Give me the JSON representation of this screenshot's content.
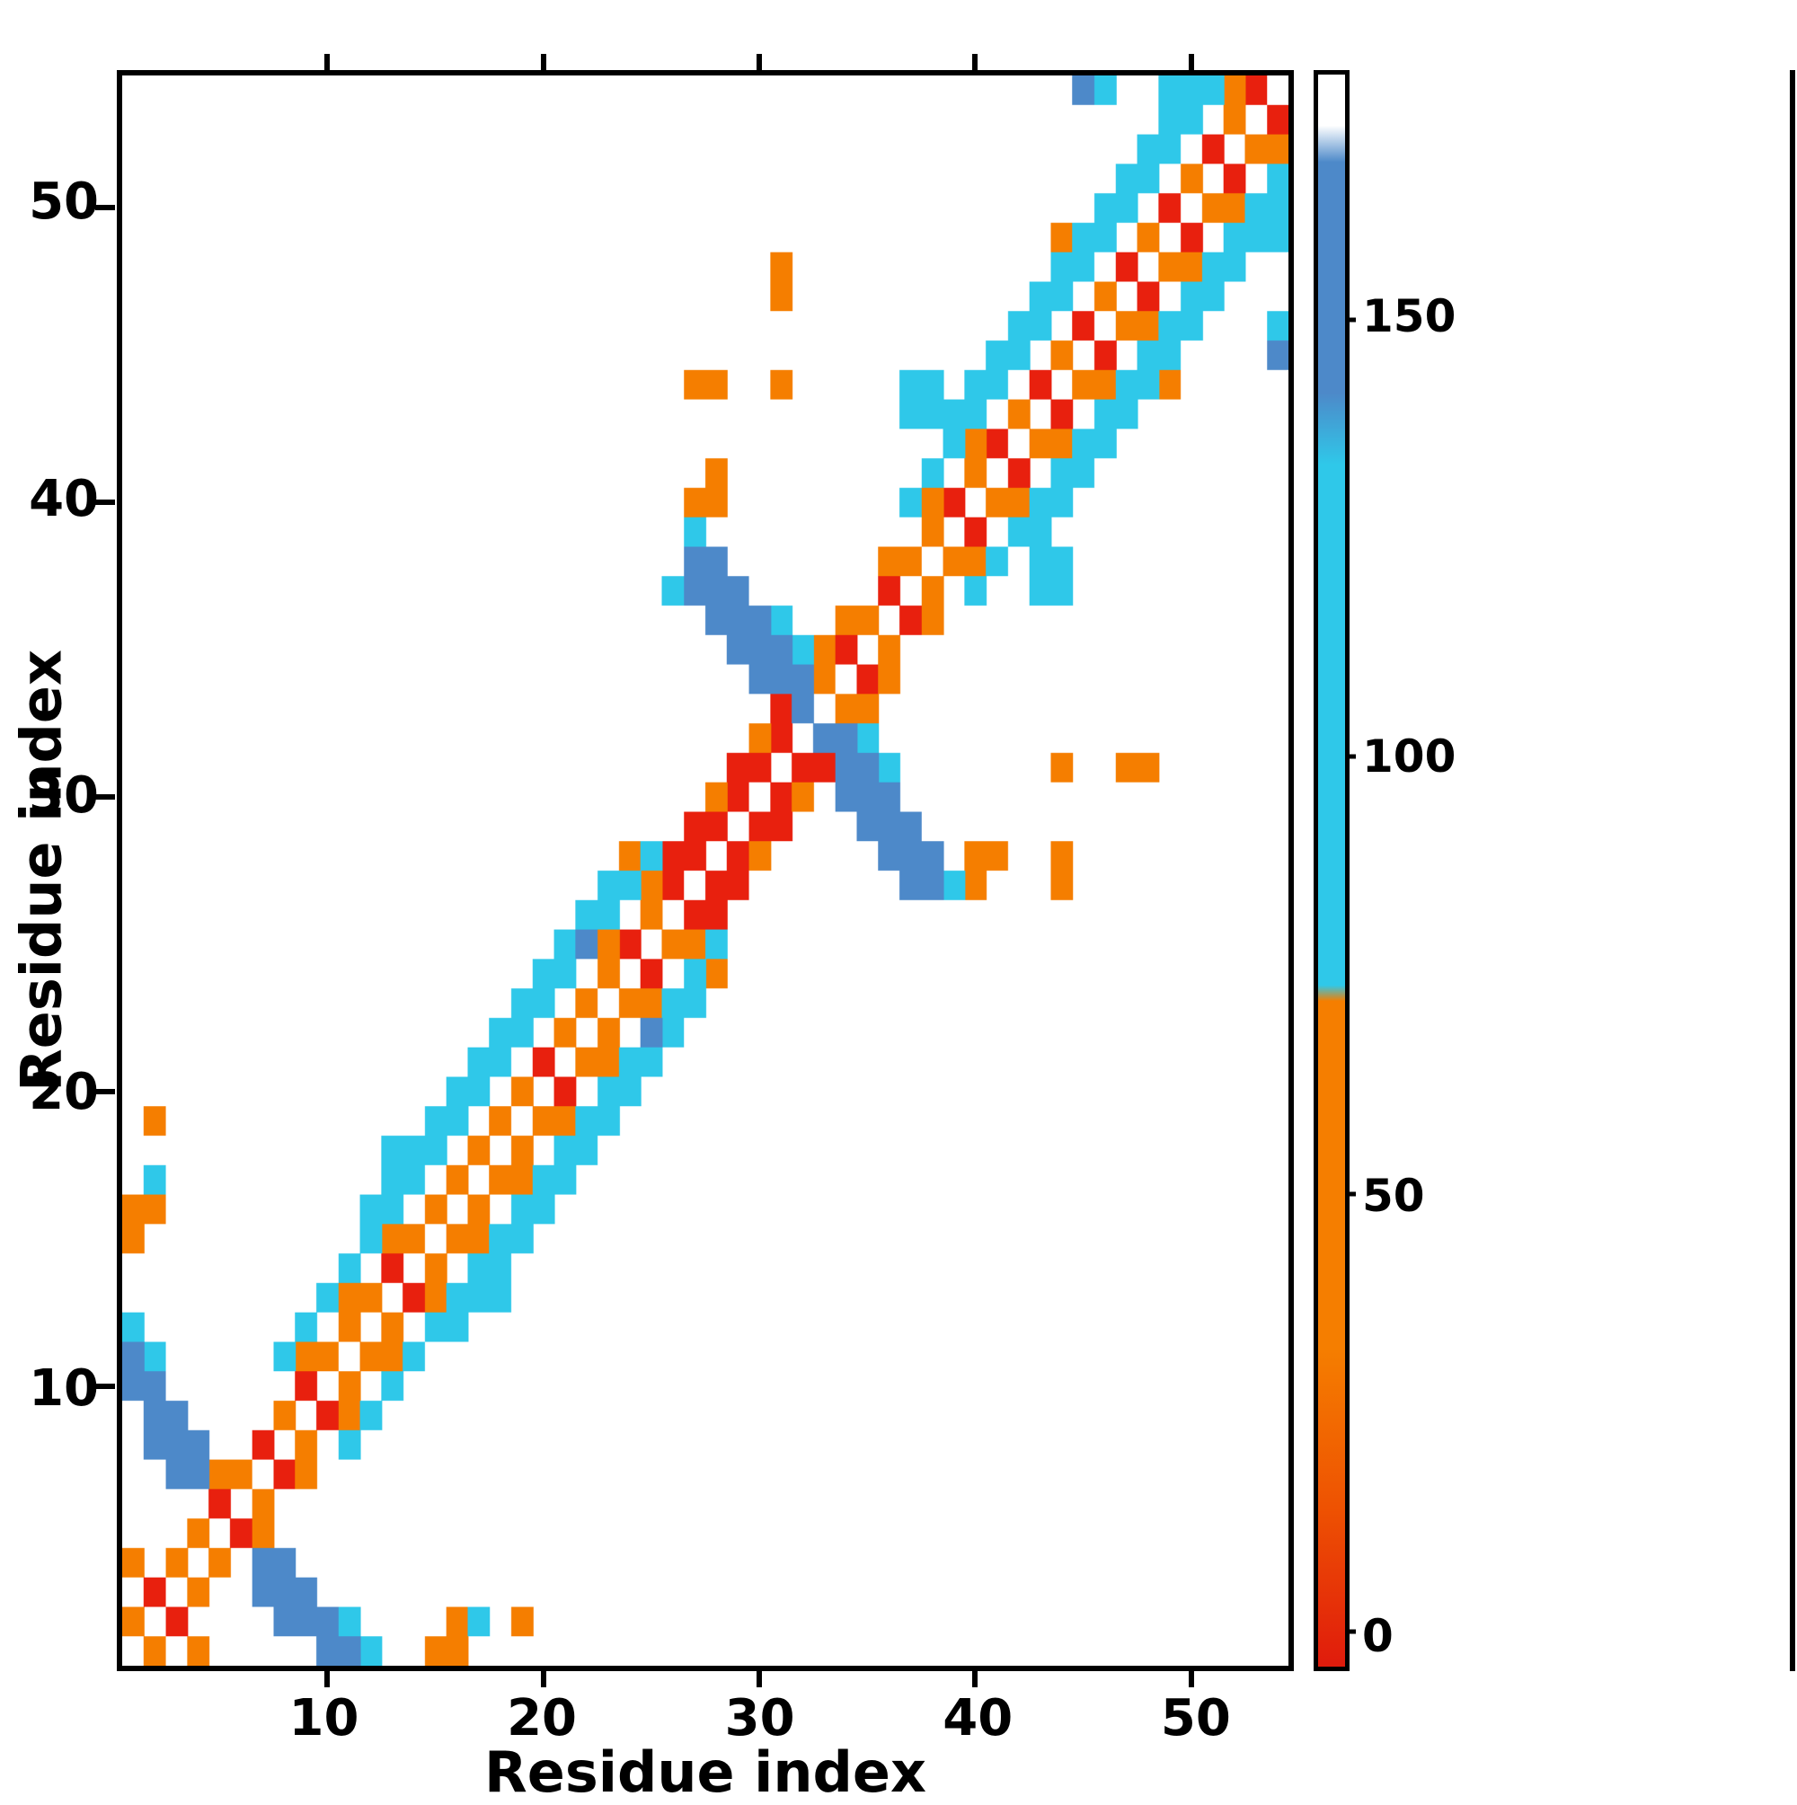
{
  "chart_data": {
    "type": "heatmap",
    "title": "",
    "xlabel": "Residue index",
    "ylabel": "Residue index",
    "n_residues": 54,
    "axis_range": [
      0.5,
      54.5
    ],
    "x_ticks": [
      10,
      20,
      30,
      40,
      50
    ],
    "y_ticks": [
      10,
      20,
      30,
      40,
      50
    ],
    "grid": false,
    "background_value": null,
    "palette": {
      "red": "#e8200e",
      "orange": "#f57e00",
      "cyan": "#2fc8e9",
      "blue": "#4d89c9"
    },
    "approx_value_by_color": {
      "red": 5,
      "orange": 45,
      "cyan": 110,
      "blue": 155
    },
    "cells_by_color": {
      "red": [
        [
          3,
          2
        ],
        [
          2,
          3
        ],
        [
          6,
          5
        ],
        [
          5,
          6
        ],
        [
          8,
          7
        ],
        [
          7,
          8
        ],
        [
          10,
          9
        ],
        [
          9,
          10
        ],
        [
          14,
          13
        ],
        [
          13,
          14
        ],
        [
          21,
          20
        ],
        [
          20,
          21
        ],
        [
          25,
          24
        ],
        [
          24,
          25
        ],
        [
          27,
          26
        ],
        [
          28,
          26
        ],
        [
          26,
          27
        ],
        [
          28,
          27
        ],
        [
          29,
          27
        ],
        [
          26,
          28
        ],
        [
          27,
          28
        ],
        [
          29,
          28
        ],
        [
          27,
          29
        ],
        [
          28,
          29
        ],
        [
          30,
          29
        ],
        [
          31,
          29
        ],
        [
          29,
          30
        ],
        [
          31,
          30
        ],
        [
          29,
          31
        ],
        [
          30,
          31
        ],
        [
          32,
          31
        ],
        [
          33,
          31
        ],
        [
          31,
          32
        ],
        [
          31,
          33
        ],
        [
          35,
          34
        ],
        [
          34,
          35
        ],
        [
          37,
          36
        ],
        [
          36,
          37
        ],
        [
          40,
          39
        ],
        [
          39,
          40
        ],
        [
          42,
          41
        ],
        [
          41,
          42
        ],
        [
          44,
          43
        ],
        [
          43,
          44
        ],
        [
          46,
          45
        ],
        [
          45,
          46
        ],
        [
          48,
          47
        ],
        [
          47,
          48
        ],
        [
          50,
          49
        ],
        [
          49,
          50
        ],
        [
          52,
          51
        ],
        [
          51,
          52
        ],
        [
          54,
          53
        ],
        [
          53,
          54
        ]
      ],
      "orange": [
        [
          2,
          1
        ],
        [
          4,
          1
        ],
        [
          15,
          1
        ],
        [
          16,
          1
        ],
        [
          1,
          2
        ],
        [
          16,
          2
        ],
        [
          19,
          2
        ],
        [
          4,
          3
        ],
        [
          1,
          4
        ],
        [
          3,
          4
        ],
        [
          5,
          4
        ],
        [
          4,
          5
        ],
        [
          7,
          5
        ],
        [
          7,
          6
        ],
        [
          5,
          7
        ],
        [
          6,
          7
        ],
        [
          9,
          7
        ],
        [
          9,
          8
        ],
        [
          8,
          9
        ],
        [
          11,
          9
        ],
        [
          11,
          10
        ],
        [
          9,
          11
        ],
        [
          10,
          11
        ],
        [
          12,
          11
        ],
        [
          13,
          11
        ],
        [
          11,
          12
        ],
        [
          13,
          12
        ],
        [
          11,
          13
        ],
        [
          12,
          13
        ],
        [
          15,
          13
        ],
        [
          15,
          14
        ],
        [
          1,
          15
        ],
        [
          13,
          15
        ],
        [
          14,
          15
        ],
        [
          16,
          15
        ],
        [
          17,
          15
        ],
        [
          1,
          16
        ],
        [
          2,
          16
        ],
        [
          15,
          16
        ],
        [
          17,
          16
        ],
        [
          16,
          17
        ],
        [
          18,
          17
        ],
        [
          19,
          17
        ],
        [
          17,
          18
        ],
        [
          19,
          18
        ],
        [
          2,
          19
        ],
        [
          18,
          19
        ],
        [
          20,
          19
        ],
        [
          21,
          19
        ],
        [
          19,
          20
        ],
        [
          22,
          21
        ],
        [
          23,
          21
        ],
        [
          21,
          22
        ],
        [
          23,
          22
        ],
        [
          22,
          23
        ],
        [
          24,
          23
        ],
        [
          25,
          23
        ],
        [
          23,
          24
        ],
        [
          28,
          24
        ],
        [
          23,
          25
        ],
        [
          26,
          25
        ],
        [
          27,
          25
        ],
        [
          25,
          26
        ],
        [
          25,
          27
        ],
        [
          40,
          27
        ],
        [
          44,
          27
        ],
        [
          24,
          28
        ],
        [
          30,
          28
        ],
        [
          40,
          28
        ],
        [
          41,
          28
        ],
        [
          44,
          28
        ],
        [
          28,
          30
        ],
        [
          32,
          30
        ],
        [
          44,
          31
        ],
        [
          47,
          31
        ],
        [
          48,
          31
        ],
        [
          30,
          32
        ],
        [
          34,
          33
        ],
        [
          35,
          33
        ],
        [
          33,
          34
        ],
        [
          36,
          34
        ],
        [
          33,
          35
        ],
        [
          36,
          35
        ],
        [
          34,
          36
        ],
        [
          35,
          36
        ],
        [
          38,
          36
        ],
        [
          38,
          37
        ],
        [
          36,
          38
        ],
        [
          37,
          38
        ],
        [
          39,
          38
        ],
        [
          40,
          38
        ],
        [
          38,
          39
        ],
        [
          27,
          40
        ],
        [
          28,
          40
        ],
        [
          38,
          40
        ],
        [
          41,
          40
        ],
        [
          42,
          40
        ],
        [
          28,
          41
        ],
        [
          40,
          41
        ],
        [
          40,
          42
        ],
        [
          43,
          42
        ],
        [
          44,
          42
        ],
        [
          42,
          43
        ],
        [
          27,
          44
        ],
        [
          28,
          44
        ],
        [
          31,
          44
        ],
        [
          45,
          44
        ],
        [
          46,
          44
        ],
        [
          49,
          44
        ],
        [
          44,
          45
        ],
        [
          47,
          46
        ],
        [
          48,
          46
        ],
        [
          31,
          47
        ],
        [
          46,
          47
        ],
        [
          31,
          48
        ],
        [
          49,
          48
        ],
        [
          50,
          48
        ],
        [
          44,
          49
        ],
        [
          48,
          49
        ],
        [
          51,
          50
        ],
        [
          52,
          50
        ],
        [
          50,
          51
        ],
        [
          53,
          52
        ],
        [
          54,
          52
        ],
        [
          52,
          53
        ],
        [
          52,
          54
        ]
      ],
      "cyan": [
        [
          12,
          1
        ],
        [
          11,
          2
        ],
        [
          17,
          2
        ],
        [
          11,
          8
        ],
        [
          12,
          9
        ],
        [
          13,
          10
        ],
        [
          2,
          11
        ],
        [
          8,
          11
        ],
        [
          14,
          11
        ],
        [
          1,
          12
        ],
        [
          9,
          12
        ],
        [
          15,
          12
        ],
        [
          16,
          12
        ],
        [
          10,
          13
        ],
        [
          16,
          13
        ],
        [
          17,
          13
        ],
        [
          18,
          13
        ],
        [
          11,
          14
        ],
        [
          17,
          14
        ],
        [
          18,
          14
        ],
        [
          12,
          15
        ],
        [
          18,
          15
        ],
        [
          19,
          15
        ],
        [
          12,
          16
        ],
        [
          13,
          16
        ],
        [
          19,
          16
        ],
        [
          20,
          16
        ],
        [
          2,
          17
        ],
        [
          13,
          17
        ],
        [
          14,
          17
        ],
        [
          20,
          17
        ],
        [
          21,
          17
        ],
        [
          13,
          18
        ],
        [
          14,
          18
        ],
        [
          15,
          18
        ],
        [
          21,
          18
        ],
        [
          22,
          18
        ],
        [
          15,
          19
        ],
        [
          16,
          19
        ],
        [
          22,
          19
        ],
        [
          23,
          19
        ],
        [
          16,
          20
        ],
        [
          17,
          20
        ],
        [
          23,
          20
        ],
        [
          24,
          20
        ],
        [
          17,
          21
        ],
        [
          18,
          21
        ],
        [
          24,
          21
        ],
        [
          25,
          21
        ],
        [
          18,
          22
        ],
        [
          19,
          22
        ],
        [
          26,
          22
        ],
        [
          19,
          23
        ],
        [
          20,
          23
        ],
        [
          26,
          23
        ],
        [
          27,
          23
        ],
        [
          20,
          24
        ],
        [
          21,
          24
        ],
        [
          27,
          24
        ],
        [
          21,
          25
        ],
        [
          28,
          25
        ],
        [
          22,
          26
        ],
        [
          23,
          26
        ],
        [
          23,
          27
        ],
        [
          24,
          27
        ],
        [
          39,
          27
        ],
        [
          25,
          28
        ],
        [
          36,
          31
        ],
        [
          35,
          32
        ],
        [
          32,
          35
        ],
        [
          31,
          36
        ],
        [
          26,
          37
        ],
        [
          40,
          37
        ],
        [
          43,
          37
        ],
        [
          44,
          37
        ],
        [
          41,
          38
        ],
        [
          43,
          38
        ],
        [
          44,
          38
        ],
        [
          27,
          39
        ],
        [
          42,
          39
        ],
        [
          43,
          39
        ],
        [
          37,
          40
        ],
        [
          43,
          40
        ],
        [
          44,
          40
        ],
        [
          38,
          41
        ],
        [
          44,
          41
        ],
        [
          45,
          41
        ],
        [
          39,
          42
        ],
        [
          45,
          42
        ],
        [
          46,
          42
        ],
        [
          37,
          43
        ],
        [
          38,
          43
        ],
        [
          39,
          43
        ],
        [
          40,
          43
        ],
        [
          46,
          43
        ],
        [
          47,
          43
        ],
        [
          37,
          44
        ],
        [
          38,
          44
        ],
        [
          40,
          44
        ],
        [
          41,
          44
        ],
        [
          47,
          44
        ],
        [
          48,
          44
        ],
        [
          41,
          45
        ],
        [
          42,
          45
        ],
        [
          48,
          45
        ],
        [
          49,
          45
        ],
        [
          42,
          46
        ],
        [
          43,
          46
        ],
        [
          49,
          46
        ],
        [
          50,
          46
        ],
        [
          54,
          46
        ],
        [
          43,
          47
        ],
        [
          44,
          47
        ],
        [
          50,
          47
        ],
        [
          51,
          47
        ],
        [
          44,
          48
        ],
        [
          45,
          48
        ],
        [
          51,
          48
        ],
        [
          52,
          48
        ],
        [
          45,
          49
        ],
        [
          46,
          49
        ],
        [
          52,
          49
        ],
        [
          53,
          49
        ],
        [
          54,
          49
        ],
        [
          46,
          50
        ],
        [
          47,
          50
        ],
        [
          53,
          50
        ],
        [
          54,
          50
        ],
        [
          47,
          51
        ],
        [
          48,
          51
        ],
        [
          54,
          51
        ],
        [
          48,
          52
        ],
        [
          49,
          52
        ],
        [
          49,
          53
        ],
        [
          50,
          53
        ],
        [
          46,
          54
        ],
        [
          49,
          54
        ],
        [
          50,
          54
        ],
        [
          51,
          54
        ]
      ],
      "blue": [
        [
          10,
          1
        ],
        [
          11,
          1
        ],
        [
          8,
          2
        ],
        [
          9,
          2
        ],
        [
          10,
          2
        ],
        [
          7,
          3
        ],
        [
          8,
          3
        ],
        [
          9,
          3
        ],
        [
          7,
          4
        ],
        [
          8,
          4
        ],
        [
          3,
          7
        ],
        [
          4,
          7
        ],
        [
          2,
          8
        ],
        [
          3,
          8
        ],
        [
          4,
          8
        ],
        [
          2,
          9
        ],
        [
          3,
          9
        ],
        [
          1,
          10
        ],
        [
          2,
          10
        ],
        [
          1,
          11
        ],
        [
          25,
          22
        ],
        [
          22,
          25
        ],
        [
          37,
          27
        ],
        [
          38,
          27
        ],
        [
          36,
          28
        ],
        [
          37,
          28
        ],
        [
          38,
          28
        ],
        [
          35,
          29
        ],
        [
          36,
          29
        ],
        [
          37,
          29
        ],
        [
          34,
          30
        ],
        [
          35,
          30
        ],
        [
          36,
          30
        ],
        [
          34,
          31
        ],
        [
          35,
          31
        ],
        [
          33,
          32
        ],
        [
          34,
          32
        ],
        [
          32,
          33
        ],
        [
          30,
          34
        ],
        [
          31,
          34
        ],
        [
          32,
          34
        ],
        [
          29,
          35
        ],
        [
          30,
          35
        ],
        [
          31,
          35
        ],
        [
          28,
          36
        ],
        [
          29,
          36
        ],
        [
          30,
          36
        ],
        [
          27,
          37
        ],
        [
          28,
          37
        ],
        [
          29,
          37
        ],
        [
          27,
          38
        ],
        [
          28,
          38
        ],
        [
          54,
          45
        ],
        [
          45,
          54
        ]
      ]
    },
    "colorbar": {
      "ticks": [
        0,
        50,
        100,
        150
      ],
      "range": [
        -4,
        178
      ],
      "gradient_stops": [
        {
          "pos": 0.0,
          "color": "#e01b0c"
        },
        {
          "pos": 0.1,
          "color": "#ee5202"
        },
        {
          "pos": 0.2,
          "color": "#f57e00"
        },
        {
          "pos": 0.418,
          "color": "#f57e00"
        },
        {
          "pos": 0.428,
          "color": "#2fc8e9"
        },
        {
          "pos": 0.755,
          "color": "#2fc8e9"
        },
        {
          "pos": 0.8,
          "color": "#4d89c9"
        },
        {
          "pos": 0.945,
          "color": "#4d89c9"
        },
        {
          "pos": 0.968,
          "color": "#ffffff"
        },
        {
          "pos": 1.0,
          "color": "#ffffff"
        }
      ]
    }
  }
}
